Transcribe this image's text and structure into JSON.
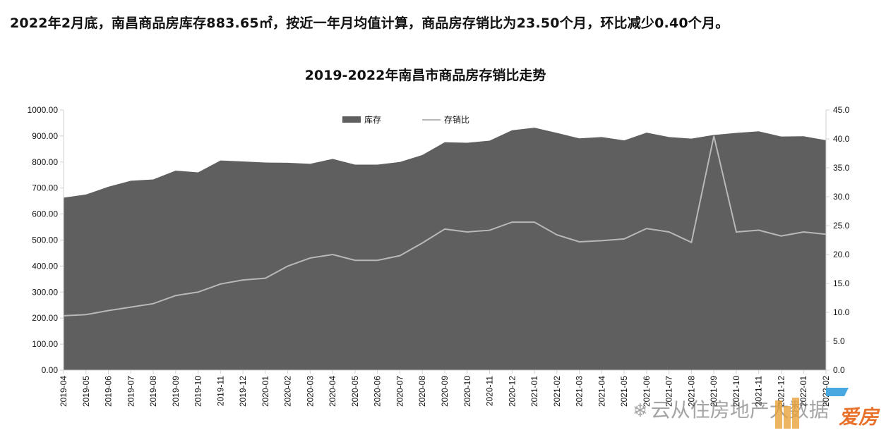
{
  "headline": "2022年2月底，南昌商品房库存883.65㎡，按近一年月均值计算，商品房存销比为23.50个月，环比减少0.40个月。",
  "colors": {
    "area": "#5f5f5f",
    "line": "#b8b8b8",
    "axis": "#d0d0d0",
    "text": "#111111",
    "logo_orange": "#e8722c",
    "logo_blue": "#4aa8e0"
  },
  "watermark": "云从住房地产大数据",
  "logo_text": "爱房",
  "chart_data": {
    "type": "area",
    "title": "2019-2022年南昌市商品房存销比走势",
    "legend_position": "top-center",
    "grid": false,
    "categories": [
      "2019-04",
      "2019-05",
      "2019-06",
      "2019-07",
      "2019-08",
      "2019-09",
      "2019-10",
      "2019-11",
      "2019-12",
      "2020-01",
      "2020-02",
      "2020-03",
      "2020-04",
      "2020-05",
      "2020-06",
      "2020-07",
      "2020-08",
      "2020-09",
      "2020-10",
      "2020-11",
      "2020-12",
      "2021-01",
      "2021-02",
      "2021-03",
      "2021-04",
      "2021-05",
      "2021-06",
      "2021-07",
      "2021-08",
      "2021-09",
      "2021-10",
      "2021-11",
      "2021-12",
      "2022-01",
      "2022-02"
    ],
    "y_left": {
      "min": 0,
      "max": 1000,
      "step": 100,
      "tick_labels": [
        "0.00",
        "100.00",
        "200.00",
        "300.00",
        "400.00",
        "500.00",
        "600.00",
        "700.00",
        "800.00",
        "900.00",
        "1000.00"
      ]
    },
    "y_right": {
      "min": 0,
      "max": 45,
      "step": 5,
      "tick_labels": [
        "0.0",
        "5.0",
        "10.0",
        "15.0",
        "20.0",
        "25.0",
        "30.0",
        "35.0",
        "40.0",
        "45.0"
      ]
    },
    "series": [
      {
        "name": "库存",
        "type": "area",
        "axis": "left",
        "values": [
          663,
          675,
          705,
          728,
          733,
          767,
          760,
          806,
          802,
          798,
          797,
          793,
          812,
          790,
          790,
          800,
          827,
          876,
          874,
          882,
          922,
          932,
          912,
          891,
          896,
          883,
          913,
          896,
          890,
          904,
          912,
          918,
          898,
          899,
          883.65
        ]
      },
      {
        "name": "存销比",
        "type": "line",
        "axis": "right",
        "values": [
          9.4,
          9.6,
          10.3,
          10.9,
          11.5,
          12.9,
          13.5,
          14.9,
          15.6,
          15.9,
          18.0,
          19.4,
          20.0,
          19.0,
          19.0,
          19.8,
          22.0,
          24.4,
          23.9,
          24.2,
          25.6,
          25.6,
          23.4,
          22.2,
          22.4,
          22.7,
          24.5,
          23.9,
          22.1,
          40.5,
          23.9,
          24.2,
          23.2,
          23.9,
          23.5
        ]
      }
    ]
  }
}
